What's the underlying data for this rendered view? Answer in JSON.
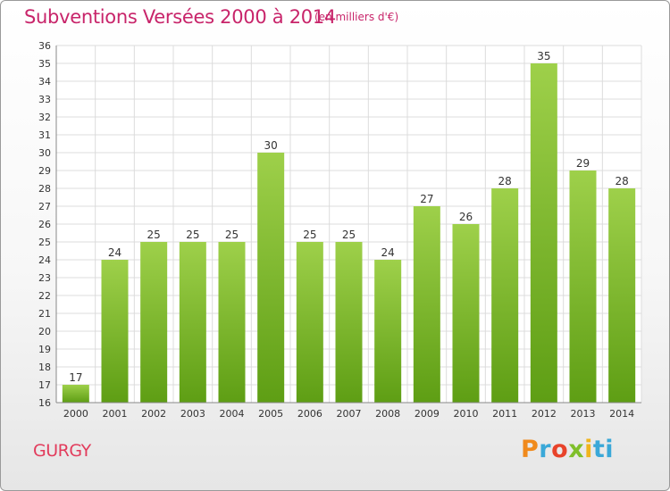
{
  "header": {
    "title": "Subventions Versées 2000 à 2014",
    "subtitle": "(en milliers d'€)"
  },
  "footer": {
    "place": "GURGY",
    "logo": {
      "letters": [
        "P",
        "r",
        "o",
        "x",
        "i",
        "ti"
      ],
      "colors": [
        "#f08a1c",
        "#3aa8d8",
        "#e8432a",
        "#7fbf2a",
        "#f0b41c",
        "#3aa8d8"
      ]
    }
  },
  "chart_data": {
    "type": "bar",
    "title": "Subventions Versées 2000 à 2014",
    "subtitle": "(en milliers d'€)",
    "categories": [
      "2000",
      "2001",
      "2002",
      "2003",
      "2004",
      "2005",
      "2006",
      "2007",
      "2008",
      "2009",
      "2010",
      "2011",
      "2012",
      "2013",
      "2014"
    ],
    "values": [
      17,
      24,
      25,
      25,
      25,
      30,
      25,
      25,
      24,
      27,
      26,
      28,
      35,
      29,
      28
    ],
    "ylim": [
      16,
      36
    ],
    "yticks": [
      16,
      17,
      18,
      19,
      20,
      21,
      22,
      23,
      24,
      25,
      26,
      27,
      28,
      29,
      30,
      31,
      32,
      33,
      34,
      35,
      36
    ],
    "grid": true,
    "bar_color": "#7cbd2e",
    "xlabel": "",
    "ylabel": ""
  }
}
